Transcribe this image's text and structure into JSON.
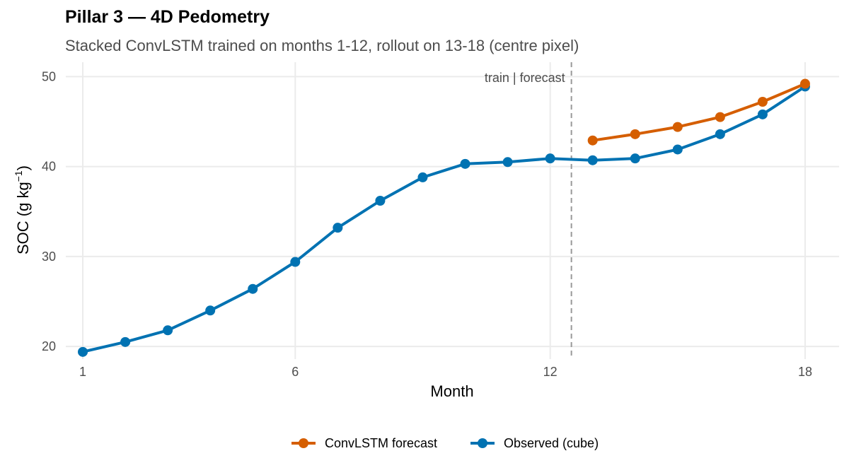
{
  "chart_data": {
    "type": "line",
    "title": "Pillar 3 — 4D Pedometry",
    "subtitle": "Stacked ConvLSTM trained on months 1-12, rollout on 13-18 (centre pixel)",
    "xlabel": "Month",
    "ylabel_main": "SOC (g kg",
    "ylabel_sup": "−1",
    "ylabel_close": ")",
    "xlim": [
      0.6,
      18.8
    ],
    "ylim": [
      18.6,
      51.6
    ],
    "x_ticks": [
      1,
      6,
      12,
      18
    ],
    "y_ticks": [
      20,
      30,
      40,
      50
    ],
    "grid": true,
    "legend_position": "bottom",
    "divider": {
      "x": 12.5,
      "label": "train | forecast",
      "color": "#999999"
    },
    "series": [
      {
        "name": "ConvLSTM forecast",
        "color": "#d55e00",
        "x": [
          13,
          14,
          15,
          16,
          17,
          18
        ],
        "y": [
          42.9,
          43.6,
          44.4,
          45.5,
          47.2,
          49.2
        ]
      },
      {
        "name": "Observed (cube)",
        "color": "#0072b2",
        "x": [
          1,
          2,
          3,
          4,
          5,
          6,
          7,
          8,
          9,
          10,
          11,
          12,
          13,
          14,
          15,
          16,
          17,
          18
        ],
        "y": [
          19.4,
          20.5,
          21.8,
          24.0,
          26.4,
          29.4,
          33.2,
          36.2,
          38.8,
          40.3,
          40.5,
          40.9,
          40.7,
          40.9,
          41.9,
          43.6,
          45.8,
          48.9
        ]
      }
    ]
  }
}
